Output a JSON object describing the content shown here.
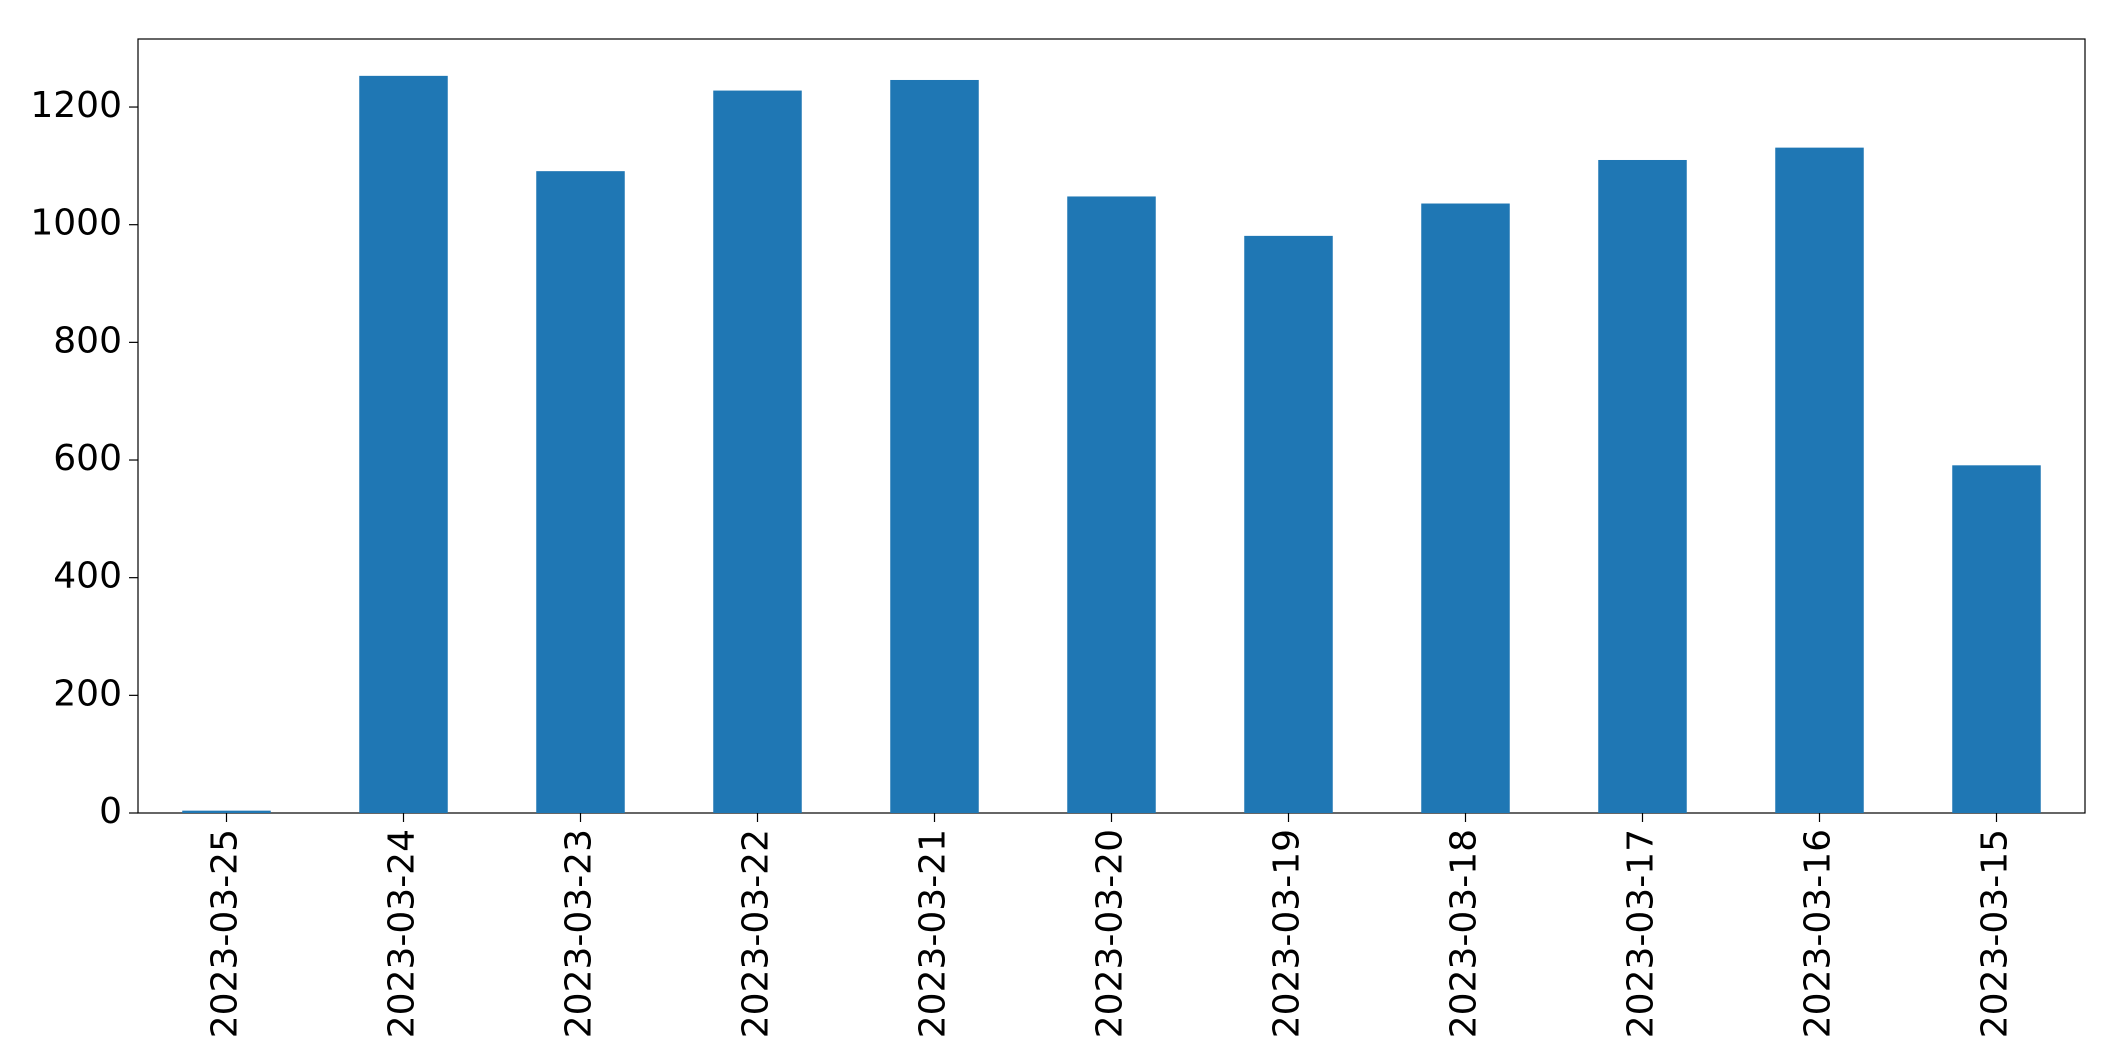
{
  "chart_data": {
    "type": "bar",
    "categories": [
      "2023-03-25",
      "2023-03-24",
      "2023-03-23",
      "2023-03-22",
      "2023-03-21",
      "2023-03-20",
      "2023-03-19",
      "2023-03-18",
      "2023-03-17",
      "2023-03-16",
      "2023-03-15"
    ],
    "values": [
      4,
      1253,
      1091,
      1228,
      1246,
      1048,
      981,
      1036,
      1110,
      1131,
      591
    ],
    "color": "#1f77b4",
    "ylim": [
      0,
      1315.65
    ],
    "yticks": [
      0,
      200,
      400,
      600,
      800,
      1000,
      1200
    ],
    "grid": false
  }
}
